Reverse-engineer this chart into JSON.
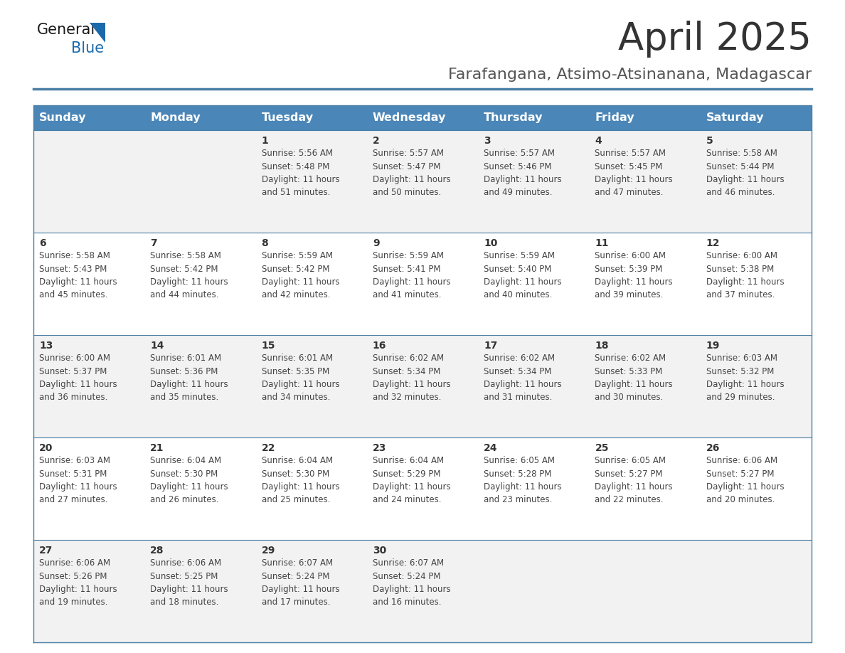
{
  "title": "April 2025",
  "subtitle": "Farafangana, Atsimo-Atsinanana, Madagascar",
  "days_of_week": [
    "Sunday",
    "Monday",
    "Tuesday",
    "Wednesday",
    "Thursday",
    "Friday",
    "Saturday"
  ],
  "header_bg": "#4a86b8",
  "header_text": "#ffffff",
  "cell_bg_odd": "#f2f2f2",
  "cell_bg_even": "#ffffff",
  "border_color": "#4a7fa5",
  "title_color": "#333333",
  "subtitle_color": "#555555",
  "day_num_color": "#333333",
  "cell_text_color": "#444444",
  "calendar": [
    [
      {
        "day": 0,
        "data": ""
      },
      {
        "day": 0,
        "data": ""
      },
      {
        "day": 1,
        "data": "Sunrise: 5:56 AM\nSunset: 5:48 PM\nDaylight: 11 hours\nand 51 minutes."
      },
      {
        "day": 2,
        "data": "Sunrise: 5:57 AM\nSunset: 5:47 PM\nDaylight: 11 hours\nand 50 minutes."
      },
      {
        "day": 3,
        "data": "Sunrise: 5:57 AM\nSunset: 5:46 PM\nDaylight: 11 hours\nand 49 minutes."
      },
      {
        "day": 4,
        "data": "Sunrise: 5:57 AM\nSunset: 5:45 PM\nDaylight: 11 hours\nand 47 minutes."
      },
      {
        "day": 5,
        "data": "Sunrise: 5:58 AM\nSunset: 5:44 PM\nDaylight: 11 hours\nand 46 minutes."
      }
    ],
    [
      {
        "day": 6,
        "data": "Sunrise: 5:58 AM\nSunset: 5:43 PM\nDaylight: 11 hours\nand 45 minutes."
      },
      {
        "day": 7,
        "data": "Sunrise: 5:58 AM\nSunset: 5:42 PM\nDaylight: 11 hours\nand 44 minutes."
      },
      {
        "day": 8,
        "data": "Sunrise: 5:59 AM\nSunset: 5:42 PM\nDaylight: 11 hours\nand 42 minutes."
      },
      {
        "day": 9,
        "data": "Sunrise: 5:59 AM\nSunset: 5:41 PM\nDaylight: 11 hours\nand 41 minutes."
      },
      {
        "day": 10,
        "data": "Sunrise: 5:59 AM\nSunset: 5:40 PM\nDaylight: 11 hours\nand 40 minutes."
      },
      {
        "day": 11,
        "data": "Sunrise: 6:00 AM\nSunset: 5:39 PM\nDaylight: 11 hours\nand 39 minutes."
      },
      {
        "day": 12,
        "data": "Sunrise: 6:00 AM\nSunset: 5:38 PM\nDaylight: 11 hours\nand 37 minutes."
      }
    ],
    [
      {
        "day": 13,
        "data": "Sunrise: 6:00 AM\nSunset: 5:37 PM\nDaylight: 11 hours\nand 36 minutes."
      },
      {
        "day": 14,
        "data": "Sunrise: 6:01 AM\nSunset: 5:36 PM\nDaylight: 11 hours\nand 35 minutes."
      },
      {
        "day": 15,
        "data": "Sunrise: 6:01 AM\nSunset: 5:35 PM\nDaylight: 11 hours\nand 34 minutes."
      },
      {
        "day": 16,
        "data": "Sunrise: 6:02 AM\nSunset: 5:34 PM\nDaylight: 11 hours\nand 32 minutes."
      },
      {
        "day": 17,
        "data": "Sunrise: 6:02 AM\nSunset: 5:34 PM\nDaylight: 11 hours\nand 31 minutes."
      },
      {
        "day": 18,
        "data": "Sunrise: 6:02 AM\nSunset: 5:33 PM\nDaylight: 11 hours\nand 30 minutes."
      },
      {
        "day": 19,
        "data": "Sunrise: 6:03 AM\nSunset: 5:32 PM\nDaylight: 11 hours\nand 29 minutes."
      }
    ],
    [
      {
        "day": 20,
        "data": "Sunrise: 6:03 AM\nSunset: 5:31 PM\nDaylight: 11 hours\nand 27 minutes."
      },
      {
        "day": 21,
        "data": "Sunrise: 6:04 AM\nSunset: 5:30 PM\nDaylight: 11 hours\nand 26 minutes."
      },
      {
        "day": 22,
        "data": "Sunrise: 6:04 AM\nSunset: 5:30 PM\nDaylight: 11 hours\nand 25 minutes."
      },
      {
        "day": 23,
        "data": "Sunrise: 6:04 AM\nSunset: 5:29 PM\nDaylight: 11 hours\nand 24 minutes."
      },
      {
        "day": 24,
        "data": "Sunrise: 6:05 AM\nSunset: 5:28 PM\nDaylight: 11 hours\nand 23 minutes."
      },
      {
        "day": 25,
        "data": "Sunrise: 6:05 AM\nSunset: 5:27 PM\nDaylight: 11 hours\nand 22 minutes."
      },
      {
        "day": 26,
        "data": "Sunrise: 6:06 AM\nSunset: 5:27 PM\nDaylight: 11 hours\nand 20 minutes."
      }
    ],
    [
      {
        "day": 27,
        "data": "Sunrise: 6:06 AM\nSunset: 5:26 PM\nDaylight: 11 hours\nand 19 minutes."
      },
      {
        "day": 28,
        "data": "Sunrise: 6:06 AM\nSunset: 5:25 PM\nDaylight: 11 hours\nand 18 minutes."
      },
      {
        "day": 29,
        "data": "Sunrise: 6:07 AM\nSunset: 5:24 PM\nDaylight: 11 hours\nand 17 minutes."
      },
      {
        "day": 30,
        "data": "Sunrise: 6:07 AM\nSunset: 5:24 PM\nDaylight: 11 hours\nand 16 minutes."
      },
      {
        "day": 0,
        "data": ""
      },
      {
        "day": 0,
        "data": ""
      },
      {
        "day": 0,
        "data": ""
      }
    ]
  ],
  "logo_general_color": "#1a1a1a",
  "logo_blue_color": "#1a6aab",
  "fig_width": 11.88,
  "fig_height": 9.18,
  "dpi": 100
}
